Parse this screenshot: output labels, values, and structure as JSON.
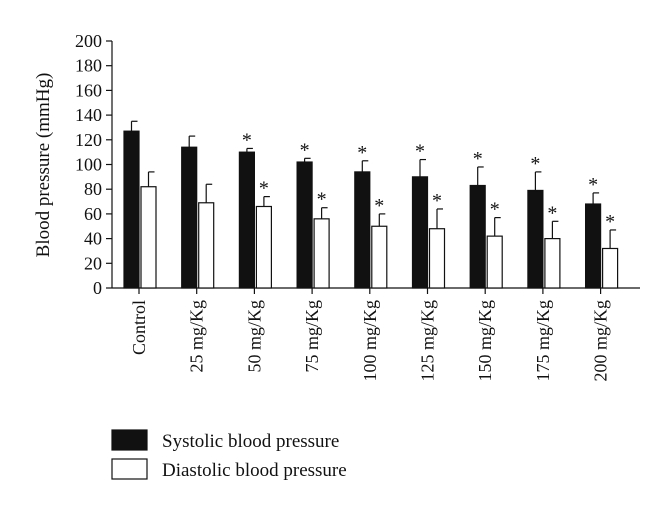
{
  "chart_data": {
    "type": "bar",
    "title": "",
    "xlabel": "",
    "ylabel": "Blood pressure (mmHg)",
    "ylim": [
      0,
      200
    ],
    "yticks": [
      0,
      20,
      40,
      60,
      80,
      100,
      120,
      140,
      160,
      180,
      200
    ],
    "grid": false,
    "legend_position": "bottom-left",
    "categories": [
      "Control",
      "25 mg/Kg",
      "50 mg/Kg",
      "75 mg/Kg",
      "100 mg/Kg",
      "125 mg/Kg",
      "150 mg/Kg",
      "175 mg/Kg",
      "200 mg/Kg"
    ],
    "series": [
      {
        "name": "Systolic blood pressure",
        "color": "#111111",
        "values": [
          127,
          114,
          110,
          102,
          94,
          90,
          83,
          79,
          68
        ],
        "errors": [
          8,
          9,
          3,
          3,
          9,
          14,
          15,
          15,
          9
        ],
        "significant": [
          false,
          false,
          true,
          true,
          true,
          true,
          true,
          true,
          true
        ]
      },
      {
        "name": "Diastolic blood pressure",
        "color": "#ffffff",
        "values": [
          82,
          69,
          66,
          56,
          50,
          48,
          42,
          40,
          32
        ],
        "errors": [
          12,
          15,
          8,
          9,
          10,
          16,
          15,
          14,
          15
        ],
        "significant": [
          false,
          false,
          true,
          true,
          true,
          true,
          true,
          true,
          true
        ]
      }
    ],
    "annotation_marker": "*"
  }
}
